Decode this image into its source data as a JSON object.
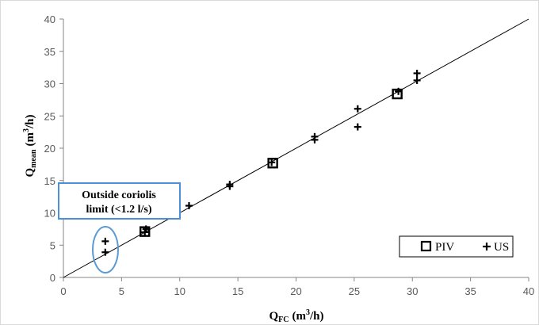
{
  "chart_data": {
    "type": "scatter",
    "xlabel": {
      "base": "Q",
      "sub": "FC",
      "unit": "(m",
      "sup": "3",
      "unit_end": "/h)"
    },
    "ylabel": {
      "base": "Q",
      "sub": "mean",
      "unit": "(m",
      "sup": "3",
      "unit_end": "/h)"
    },
    "xlim": [
      0,
      40
    ],
    "ylim": [
      0,
      40
    ],
    "xticks": [
      0,
      5,
      10,
      15,
      20,
      25,
      30,
      35,
      40
    ],
    "yticks": [
      0,
      5,
      10,
      15,
      20,
      25,
      30,
      35,
      40
    ],
    "grid": false,
    "legend_position": "bottom-right",
    "reference_line": {
      "x": [
        0,
        40
      ],
      "y": [
        0,
        40
      ]
    },
    "series": [
      {
        "name": "PIV",
        "marker": "hollow-square",
        "x": [
          7.0,
          18.0,
          28.7
        ],
        "y": [
          7.1,
          17.7,
          28.4
        ]
      },
      {
        "name": "US",
        "marker": "plus",
        "x": [
          3.6,
          3.6,
          7.0,
          7.1,
          10.8,
          14.3,
          14.3,
          17.9,
          21.6,
          21.6,
          25.3,
          25.3,
          28.8,
          30.4,
          30.4
        ],
        "y": [
          5.6,
          3.9,
          7.0,
          7.5,
          11.1,
          14.4,
          14.1,
          17.8,
          21.8,
          21.3,
          26.1,
          23.3,
          28.8,
          31.6,
          30.5
        ]
      }
    ],
    "annotation": {
      "line1": "Outside coriolis",
      "line2": "limit (<1.2 l/s)"
    }
  }
}
